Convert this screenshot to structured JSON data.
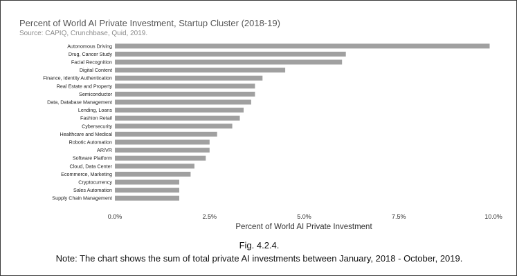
{
  "chart_data": {
    "type": "bar",
    "orientation": "horizontal",
    "title": "Percent of World AI Private Investment, Startup Cluster (2018-19)",
    "subtitle": "Source: CAPIQ, Crunchbase, Quid, 2019.",
    "xlabel": "Percent of World AI Private Investment",
    "ylabel": "",
    "xlim": [
      0,
      10
    ],
    "xticks": [
      "0.0%",
      "2.5%",
      "5.0%",
      "7.5%",
      "10.0%"
    ],
    "categories": [
      "Autonomous Driving",
      "Drug, Cancer Study",
      "Facial Recognition",
      "Digital Content",
      "Finance, Identity Authentication",
      "Real Estate and Property",
      "Semiconductor",
      "Data, Database Management",
      "Lending, Loans",
      "Fashion Retail",
      "Cybersecurity",
      "Healthcare and Medical",
      "Robotic Automation",
      "AR/VR",
      "Software Platform",
      "Cloud, Data Center",
      "Ecommerce, Marketing",
      "Cryptocurrency",
      "Sales Automation",
      "Supply Chain Management"
    ],
    "values": [
      9.9,
      6.1,
      6.0,
      4.5,
      3.9,
      3.7,
      3.7,
      3.6,
      3.4,
      3.3,
      3.1,
      2.7,
      2.5,
      2.5,
      2.4,
      2.1,
      2.0,
      1.7,
      1.7,
      1.7
    ],
    "bar_color": "#a0a0a0",
    "grid": false,
    "legend": "none"
  },
  "caption": {
    "figure": "Fig. 4.2.4.",
    "note": "Note: The chart shows the sum of total private AI investments between January, 2018 - October, 2019."
  }
}
